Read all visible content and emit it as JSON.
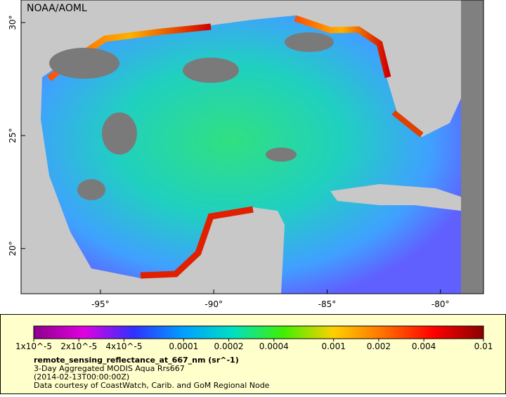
{
  "map": {
    "title": "NOAA/AOML",
    "xlim": [
      -98.5,
      -78.1
    ],
    "ylim": [
      18.0,
      31.0
    ],
    "xticks": [
      {
        "value": -95,
        "label": "-95°"
      },
      {
        "value": -90,
        "label": "-90°"
      },
      {
        "value": -85,
        "label": "-85°"
      },
      {
        "value": -80,
        "label": "-80°"
      }
    ],
    "yticks": [
      {
        "value": 20,
        "label": "20°"
      },
      {
        "value": 25,
        "label": "25°"
      },
      {
        "value": 30,
        "label": "30°"
      }
    ],
    "colorbar": {
      "scale": "log",
      "lim": [
        1e-05,
        0.01
      ],
      "colors": [
        "#8b008b",
        "#e000e0",
        "#3030ff",
        "#00a0ff",
        "#00e0c0",
        "#40f000",
        "#ffd000",
        "#ff7000",
        "#ff0000",
        "#8b0000"
      ],
      "ticks": [
        {
          "value": 1e-05,
          "label": "1x10^-5"
        },
        {
          "value": 2e-05,
          "label": "2x10^-5"
        },
        {
          "value": 4e-05,
          "label": "4x10^-5"
        },
        {
          "value": 0.0001,
          "label": "0.0001"
        },
        {
          "value": 0.0002,
          "label": "0.0002"
        },
        {
          "value": 0.0004,
          "label": "0.0004"
        },
        {
          "value": 0.001,
          "label": "0.001"
        },
        {
          "value": 0.002,
          "label": "0.002"
        },
        {
          "value": 0.004,
          "label": "0.004"
        },
        {
          "value": 0.01,
          "label": "0.01"
        }
      ]
    },
    "variable": "remote_sensing_reflectance_at_667_nm (sr^-1)",
    "description": "3-Day Aggregated MODIS Aqua Rrs667",
    "time": "(2014-02-13T00:00:00Z)",
    "credit": "Data courtesy of CoastWatch, Carib. and GoM Regional Node"
  }
}
